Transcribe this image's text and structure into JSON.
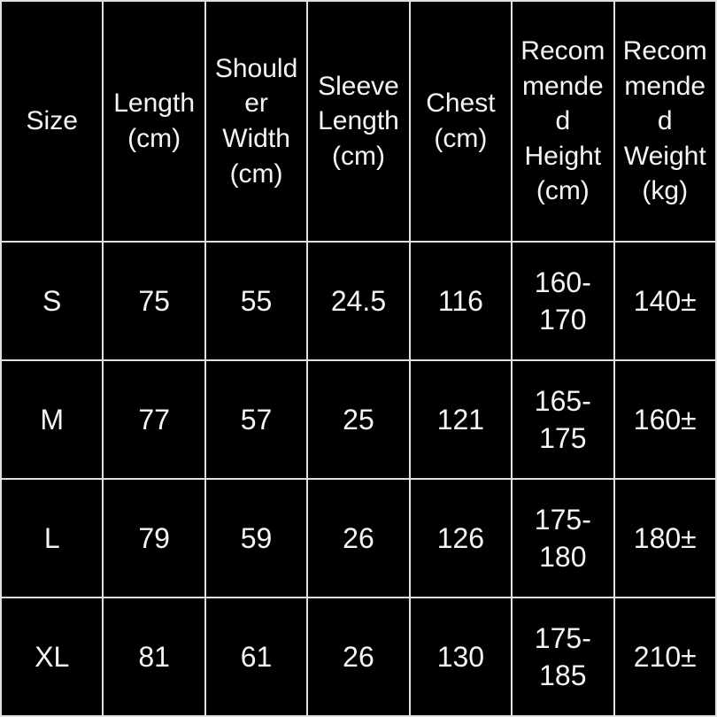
{
  "chart_data": {
    "type": "table",
    "title": "",
    "columns": [
      "Size",
      "Length (cm)",
      "Shoulder Width (cm)",
      "Sleeve Length (cm)",
      "Chest (cm)",
      "Recommended Height (cm)",
      "Recommended Weight (kg)"
    ],
    "rows": [
      [
        "S",
        "75",
        "55",
        "24.5",
        "116",
        "160-170",
        "140±"
      ],
      [
        "M",
        "77",
        "57",
        "25",
        "121",
        "165-175",
        "160±"
      ],
      [
        "L",
        "79",
        "59",
        "26",
        "126",
        "175-180",
        "180±"
      ],
      [
        "XL",
        "81",
        "61",
        "26",
        "130",
        "175-185",
        "210±"
      ]
    ]
  },
  "colors": {
    "background": "#000000",
    "text": "#f5f5f5",
    "border": "#e0e0e0"
  }
}
